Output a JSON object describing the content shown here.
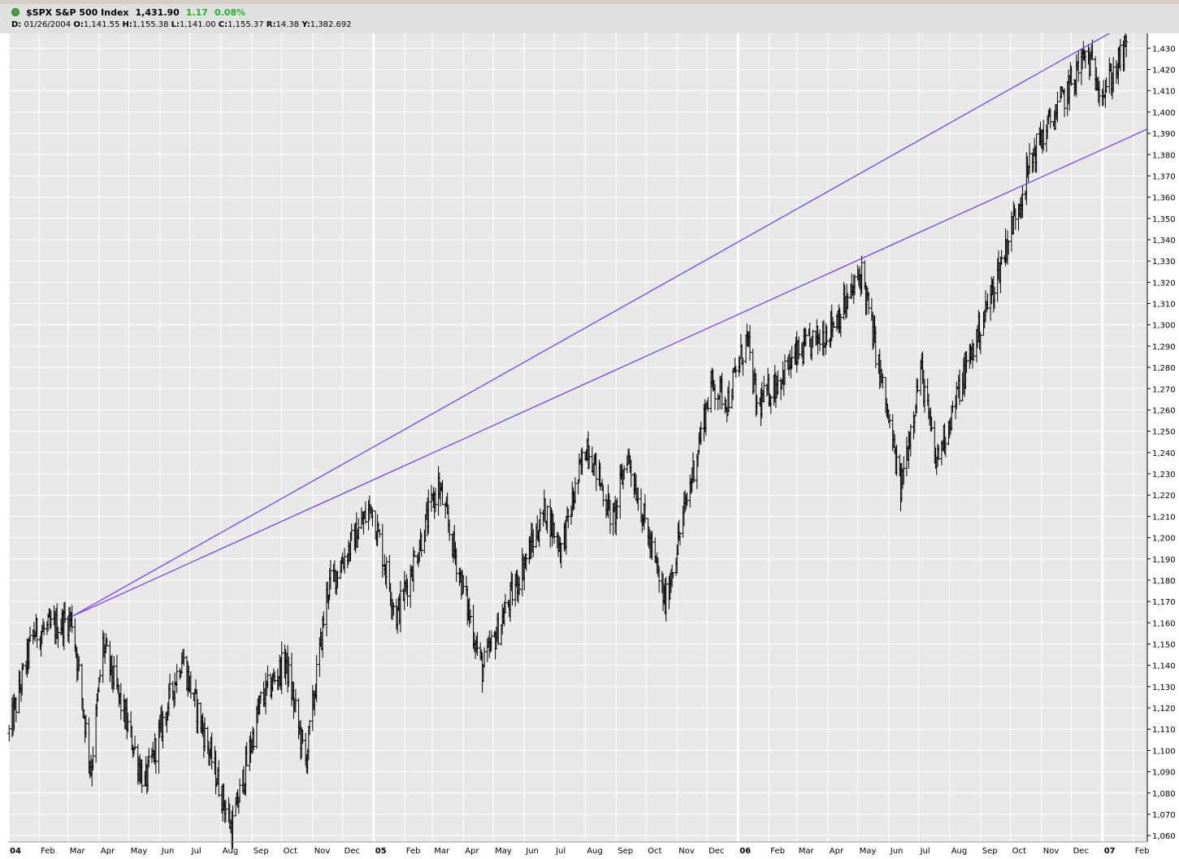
{
  "header": {
    "symbol": "$SPX",
    "name": "S&P 500 Index",
    "last": "1,431.90",
    "change": "1.17",
    "change_pct": "0.08%",
    "date_label": "D:",
    "date": "01/26/2004",
    "open_label": "O:",
    "open": "1,141.55",
    "high_label": "H:",
    "high": "1,155.38",
    "low_label": "L:",
    "low": "1,141.00",
    "close_label": "C:",
    "close": "1,155.37",
    "range_label": "R:",
    "range": "14.38",
    "y_label": "Y:",
    "y": "1,382.692",
    "up_color": "#22b422"
  },
  "chart_data": {
    "type": "ohlc",
    "title": "",
    "xlabel": "",
    "ylabel": "",
    "ylim": [
      1057,
      1437
    ],
    "grid": true,
    "y_axis_side": "right",
    "x_range": [
      "2004-01-01",
      "2007-02-15"
    ],
    "y_ticks": [
      1060,
      1070,
      1080,
      1090,
      1100,
      1110,
      1120,
      1130,
      1140,
      1150,
      1160,
      1170,
      1180,
      1190,
      1200,
      1210,
      1220,
      1230,
      1240,
      1250,
      1260,
      1270,
      1280,
      1290,
      1300,
      1310,
      1320,
      1330,
      1340,
      1350,
      1360,
      1370,
      1380,
      1390,
      1400,
      1410,
      1420,
      1430
    ],
    "x_ticks": [
      {
        "label": "04",
        "date": "2004-01-01",
        "bold": true
      },
      {
        "label": "Feb",
        "date": "2004-02-01"
      },
      {
        "label": "Mar",
        "date": "2004-03-01"
      },
      {
        "label": "Apr",
        "date": "2004-04-01"
      },
      {
        "label": "May",
        "date": "2004-05-01"
      },
      {
        "label": "Jun",
        "date": "2004-06-01"
      },
      {
        "label": "Jul",
        "date": "2004-07-01"
      },
      {
        "label": "Aug",
        "date": "2004-08-01"
      },
      {
        "label": "Sep",
        "date": "2004-09-01"
      },
      {
        "label": "Oct",
        "date": "2004-10-01"
      },
      {
        "label": "Nov",
        "date": "2004-11-01"
      },
      {
        "label": "Dec",
        "date": "2004-12-01"
      },
      {
        "label": "05",
        "date": "2005-01-01",
        "bold": true
      },
      {
        "label": "Feb",
        "date": "2005-02-01"
      },
      {
        "label": "Mar",
        "date": "2005-03-01"
      },
      {
        "label": "Apr",
        "date": "2005-04-01"
      },
      {
        "label": "May",
        "date": "2005-05-01"
      },
      {
        "label": "Jun",
        "date": "2005-06-01"
      },
      {
        "label": "Jul",
        "date": "2005-07-01"
      },
      {
        "label": "Aug",
        "date": "2005-08-01"
      },
      {
        "label": "Sep",
        "date": "2005-09-01"
      },
      {
        "label": "Oct",
        "date": "2005-10-01"
      },
      {
        "label": "Nov",
        "date": "2005-11-01"
      },
      {
        "label": "Dec",
        "date": "2005-12-01"
      },
      {
        "label": "06",
        "date": "2006-01-01",
        "bold": true
      },
      {
        "label": "Feb",
        "date": "2006-02-01"
      },
      {
        "label": "Mar",
        "date": "2006-03-01"
      },
      {
        "label": "Apr",
        "date": "2006-04-01"
      },
      {
        "label": "May",
        "date": "2006-05-01"
      },
      {
        "label": "Jun",
        "date": "2006-06-01"
      },
      {
        "label": "Jul",
        "date": "2006-07-01"
      },
      {
        "label": "Aug",
        "date": "2006-08-01"
      },
      {
        "label": "Sep",
        "date": "2006-09-01"
      },
      {
        "label": "Oct",
        "date": "2006-10-01"
      },
      {
        "label": "Nov",
        "date": "2006-11-01"
      },
      {
        "label": "Dec",
        "date": "2006-12-01"
      },
      {
        "label": "07",
        "date": "2007-01-01",
        "bold": true
      },
      {
        "label": "Feb",
        "date": "2007-02-01"
      }
    ],
    "series_keypoints": [
      {
        "date": "2004-01-02",
        "close": 1108
      },
      {
        "date": "2004-01-26",
        "close": 1155
      },
      {
        "date": "2004-02-11",
        "close": 1157
      },
      {
        "date": "2004-03-05",
        "close": 1162
      },
      {
        "date": "2004-03-24",
        "close": 1091
      },
      {
        "date": "2004-04-05",
        "close": 1150
      },
      {
        "date": "2004-05-17",
        "close": 1084
      },
      {
        "date": "2004-06-23",
        "close": 1144
      },
      {
        "date": "2004-08-12",
        "close": 1063
      },
      {
        "date": "2004-09-10",
        "close": 1123
      },
      {
        "date": "2004-10-05",
        "close": 1142
      },
      {
        "date": "2004-10-25",
        "close": 1094
      },
      {
        "date": "2004-11-16",
        "close": 1176
      },
      {
        "date": "2004-12-30",
        "close": 1215
      },
      {
        "date": "2005-01-24",
        "close": 1163
      },
      {
        "date": "2005-03-07",
        "close": 1225
      },
      {
        "date": "2005-04-20",
        "close": 1138
      },
      {
        "date": "2005-06-22",
        "close": 1213
      },
      {
        "date": "2005-07-08",
        "close": 1195
      },
      {
        "date": "2005-08-03",
        "close": 1245
      },
      {
        "date": "2005-08-29",
        "close": 1207
      },
      {
        "date": "2005-09-12",
        "close": 1240
      },
      {
        "date": "2005-10-20",
        "close": 1169
      },
      {
        "date": "2005-12-05",
        "close": 1272
      },
      {
        "date": "2005-12-22",
        "close": 1265
      },
      {
        "date": "2006-01-10",
        "close": 1294
      },
      {
        "date": "2006-01-20",
        "close": 1261
      },
      {
        "date": "2006-02-28",
        "close": 1285
      },
      {
        "date": "2006-03-31",
        "close": 1297
      },
      {
        "date": "2006-04-21",
        "close": 1311
      },
      {
        "date": "2006-05-05",
        "close": 1325
      },
      {
        "date": "2006-06-13",
        "close": 1223
      },
      {
        "date": "2006-07-03",
        "close": 1280
      },
      {
        "date": "2006-07-18",
        "close": 1235
      },
      {
        "date": "2006-08-15",
        "close": 1276
      },
      {
        "date": "2006-09-15",
        "close": 1319
      },
      {
        "date": "2006-10-25",
        "close": 1382
      },
      {
        "date": "2006-11-17",
        "close": 1401
      },
      {
        "date": "2006-12-15",
        "close": 1427
      },
      {
        "date": "2007-01-03",
        "close": 1410
      },
      {
        "date": "2007-01-26",
        "close": 1431
      }
    ],
    "trendlines": [
      {
        "color": "#7b3ff2",
        "from": {
          "date": "2004-03-05",
          "value": 1163
        },
        "to": {
          "date": "2007-01-08",
          "value": 1437
        }
      },
      {
        "color": "#7b3ff2",
        "from": {
          "date": "2004-03-05",
          "value": 1163
        },
        "to": {
          "date": "2007-02-15",
          "value": 1392
        }
      }
    ]
  }
}
